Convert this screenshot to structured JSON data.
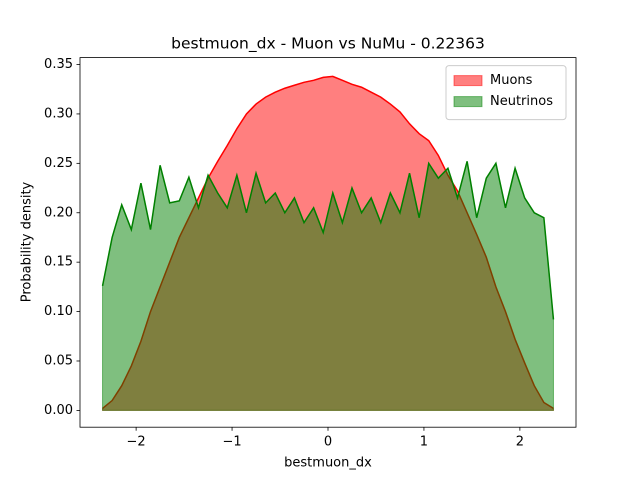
{
  "chart_data": {
    "type": "area",
    "title": "bestmuon_dx - Muon vs NuMu - 0.22363",
    "x_label": "bestmuon_dx",
    "y_label": "Probability density",
    "x": [
      -2.35,
      -2.25,
      -2.15,
      -2.05,
      -1.95,
      -1.85,
      -1.75,
      -1.65,
      -1.55,
      -1.45,
      -1.35,
      -1.25,
      -1.15,
      -1.05,
      -0.95,
      -0.85,
      -0.75,
      -0.65,
      -0.55,
      -0.45,
      -0.35,
      -0.25,
      -0.15,
      -0.05,
      0.05,
      0.15,
      0.25,
      0.35,
      0.45,
      0.55,
      0.65,
      0.75,
      0.85,
      0.95,
      1.05,
      1.15,
      1.25,
      1.35,
      1.45,
      1.55,
      1.65,
      1.75,
      1.85,
      1.95,
      2.05,
      2.15,
      2.25,
      2.35
    ],
    "series": [
      {
        "name": "Muons",
        "color": "red",
        "values": [
          0.002,
          0.01,
          0.025,
          0.045,
          0.07,
          0.1,
          0.125,
          0.15,
          0.175,
          0.195,
          0.215,
          0.235,
          0.252,
          0.268,
          0.285,
          0.3,
          0.31,
          0.317,
          0.322,
          0.326,
          0.329,
          0.332,
          0.334,
          0.337,
          0.338,
          0.334,
          0.33,
          0.327,
          0.322,
          0.317,
          0.31,
          0.302,
          0.29,
          0.28,
          0.273,
          0.258,
          0.238,
          0.222,
          0.2,
          0.178,
          0.155,
          0.125,
          0.1,
          0.072,
          0.048,
          0.025,
          0.008,
          0.002
        ]
      },
      {
        "name": "Neutrinos",
        "color": "green",
        "values": [
          0.126,
          0.175,
          0.208,
          0.183,
          0.23,
          0.183,
          0.248,
          0.21,
          0.212,
          0.236,
          0.205,
          0.238,
          0.22,
          0.205,
          0.238,
          0.2,
          0.24,
          0.21,
          0.22,
          0.2,
          0.215,
          0.19,
          0.205,
          0.18,
          0.22,
          0.19,
          0.225,
          0.2,
          0.215,
          0.19,
          0.22,
          0.2,
          0.24,
          0.195,
          0.25,
          0.235,
          0.245,
          0.215,
          0.252,
          0.195,
          0.235,
          0.25,
          0.205,
          0.245,
          0.215,
          0.2,
          0.195,
          0.092
        ]
      }
    ],
    "xlim": [
      -2.585,
      2.585
    ],
    "ylim": [
      -0.017,
      0.357
    ],
    "xticks": [
      {
        "value": -2,
        "label": "−2"
      },
      {
        "value": -1,
        "label": "−1"
      },
      0,
      1,
      2
    ],
    "yticks": [
      {
        "value": 0,
        "label": "0.00"
      },
      {
        "value": 0.05,
        "label": "0.05"
      },
      {
        "value": 0.1,
        "label": "0.10"
      },
      {
        "value": 0.15,
        "label": "0.15"
      },
      {
        "value": 0.2,
        "label": "0.20"
      },
      {
        "value": 0.25,
        "label": "0.25"
      },
      {
        "value": 0.3,
        "label": "0.30"
      },
      {
        "value": 0.35,
        "label": "0.35"
      }
    ],
    "legend": "upper right",
    "fill_opacity": 0.5
  }
}
